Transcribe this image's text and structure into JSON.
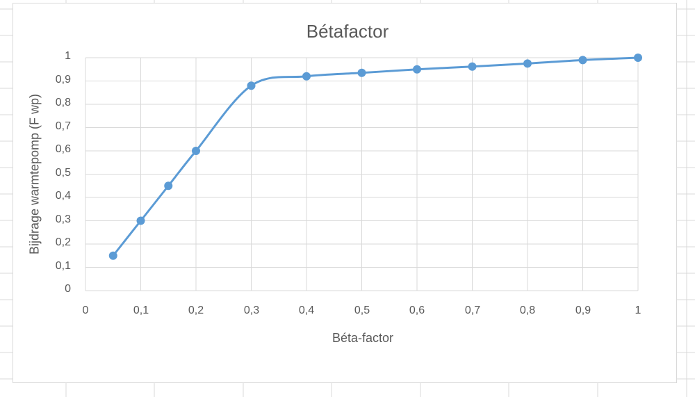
{
  "chart_data": {
    "type": "line",
    "title": "Bétafactor",
    "xlabel": "Béta-factor",
    "ylabel": "Bijdrage warmtepomp (F wp)",
    "x": [
      0.05,
      0.1,
      0.15,
      0.2,
      0.3,
      0.4,
      0.5,
      0.6,
      0.7,
      0.8,
      0.9,
      1.0
    ],
    "series": [
      {
        "name": "Bijdrage warmtepomp",
        "values": [
          0.15,
          0.3,
          0.45,
          0.6,
          0.88,
          0.92,
          0.935,
          0.95,
          0.962,
          0.975,
          0.99,
          1.0
        ],
        "color": "#5b9bd5",
        "smooth": true,
        "markers": true
      }
    ],
    "xlim": [
      0,
      1
    ],
    "ylim": [
      0,
      1
    ],
    "xticks": [
      "0",
      "0,1",
      "0,2",
      "0,3",
      "0,4",
      "0,5",
      "0,6",
      "0,7",
      "0,8",
      "0,9",
      "1"
    ],
    "yticks": [
      "0",
      "0,1",
      "0,2",
      "0,3",
      "0,4",
      "0,5",
      "0,6",
      "0,7",
      "0,8",
      "0,9",
      "1"
    ],
    "grid": true,
    "legend": null
  }
}
